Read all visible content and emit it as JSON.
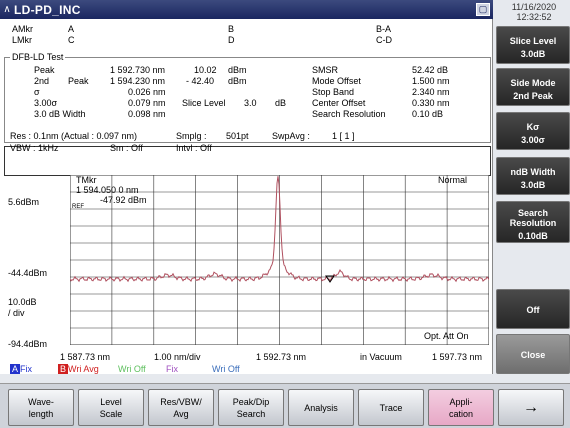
{
  "window": {
    "title": "LD-PD_INC",
    "arrow": "∧"
  },
  "datetime": {
    "date": "11/16/2020",
    "time": "12:32:52"
  },
  "markers": {
    "amkr_label": "AMkr",
    "amkr_val": "A",
    "lmkr_label": "LMkr",
    "lmkr_val": "C",
    "b_label": "B",
    "d_label": "D",
    "ba_label": "B-A",
    "cd_label": "C-D"
  },
  "test": {
    "title": "DFB-LD Test",
    "rows": {
      "peak_label": "Peak",
      "peak_wl": "1 592.730 nm",
      "peak_pwr": "10.02",
      "peak_unit": "dBm",
      "second_label": "2nd",
      "second_sub": "Peak",
      "second_wl": "1 594.230 nm",
      "second_pwr": "- 42.40",
      "second_unit": "dBm",
      "sigma_label": "σ",
      "sigma_val": "0.026 nm",
      "sigma3_label": "3.00σ",
      "sigma3_val": "0.079 nm",
      "width_label": "3.0   dB Width",
      "width_val": "0.098 nm",
      "slice_label": "Slice Level",
      "slice_val": "3.0",
      "slice_unit": "dB"
    },
    "right": {
      "smsr_label": "SMSR",
      "smsr_val": "52.42 dB",
      "mode_label": "Mode Offset",
      "mode_val": "1.500 nm",
      "stop_label": "Stop Band",
      "stop_val": "2.340 nm",
      "center_label": "Center Offset",
      "center_val": "0.330 nm",
      "search_label": "Search Resolution",
      "search_val": "0.10  dB"
    }
  },
  "setup": {
    "res": "Res :  0.1nm  (Actual : 0.097 nm)",
    "smplg_label": "Smplg :",
    "smplg_val": "501pt",
    "swpavg_label": "SwpAvg :",
    "swpavg_val": "1 [      1 ]",
    "vbw": "VBW :      1kHz",
    "sm": "Sm :    Off",
    "intvl": "Intvl :    Off"
  },
  "graph": {
    "tmkr_label": "TMkr",
    "tmkr_wl": "1 594.050 0   nm",
    "tmkr_pwr": "-47.92   dBm",
    "ref": "REF",
    "mode": "Normal",
    "y_top": "5.6dBm",
    "y_mid": "-44.4dBm",
    "y_scale": "10.0dB",
    "y_div": "/ div",
    "y_bot": "-94.4dBm",
    "opt_att": "Opt. Att On",
    "x_start": "1 587.73 nm",
    "x_span": "1.00 nm/div",
    "x_center": "1 592.73 nm",
    "x_medium": "in Vacuum",
    "x_stop": "1 597.73 nm"
  },
  "traces": {
    "a_letter": "A",
    "a_mode": "Fix",
    "b_letter": "B",
    "b_mode": "Wri Avg",
    "c_mode": "Wri Off",
    "d_mode": "Fix",
    "e_mode": "Wri Off"
  },
  "sidebar": [
    {
      "l1": "Slice Level",
      "l2": "3.0dB"
    },
    {
      "l1": "Side Mode",
      "l2": "2nd Peak"
    },
    {
      "l1": "Kσ",
      "l2": "3.00σ"
    },
    {
      "l1": "ndB Width",
      "l2": "3.0dB"
    },
    {
      "l1": "Search Resolution",
      "l2": "0.10dB"
    },
    {
      "l1": "Off",
      "l2": ""
    },
    {
      "l1": "Close",
      "l2": ""
    }
  ],
  "bottom": [
    {
      "l1": "Wave-",
      "l2": "length"
    },
    {
      "l1": "Level",
      "l2": "Scale"
    },
    {
      "l1": "Res/VBW/",
      "l2": "Avg"
    },
    {
      "l1": "Peak/Dip",
      "l2": "Search"
    },
    {
      "l1": "Analysis",
      "l2": ""
    },
    {
      "l1": "Trace",
      "l2": ""
    },
    {
      "l1": "Appli-",
      "l2": "cation"
    },
    {
      "l1": "→",
      "l2": ""
    }
  ],
  "colors": {
    "trace": "#b0505f",
    "grid": "#333333",
    "titlebar": "#1a2660"
  }
}
